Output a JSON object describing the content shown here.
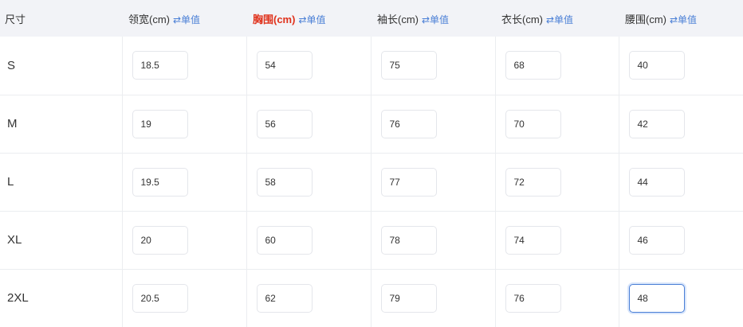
{
  "colors": {
    "highlight": "#e0321c",
    "link": "#4a7fd6",
    "focus": "#4a7fd6"
  },
  "header": {
    "size_label": "尺寸",
    "columns": [
      {
        "label": "领宽(cm)",
        "link": "⇄单值"
      },
      {
        "label": "胸围(cm)",
        "link": "⇄单值",
        "highlighted": true
      },
      {
        "label": "袖长(cm)",
        "link": "⇄单值"
      },
      {
        "label": "衣长(cm)",
        "link": "⇄单值"
      },
      {
        "label": "腰围(cm)",
        "link": "⇄单值"
      }
    ]
  },
  "rows": [
    {
      "size": "S",
      "values": [
        "18.5",
        "54",
        "75",
        "68",
        "40"
      ]
    },
    {
      "size": "M",
      "values": [
        "19",
        "56",
        "76",
        "70",
        "42"
      ]
    },
    {
      "size": "L",
      "values": [
        "19.5",
        "58",
        "77",
        "72",
        "44"
      ]
    },
    {
      "size": "XL",
      "values": [
        "20",
        "60",
        "78",
        "74",
        "46"
      ]
    },
    {
      "size": "2XL",
      "values": [
        "20.5",
        "62",
        "79",
        "76",
        "48"
      ]
    }
  ],
  "focused": {
    "row": 4,
    "col": 4
  }
}
